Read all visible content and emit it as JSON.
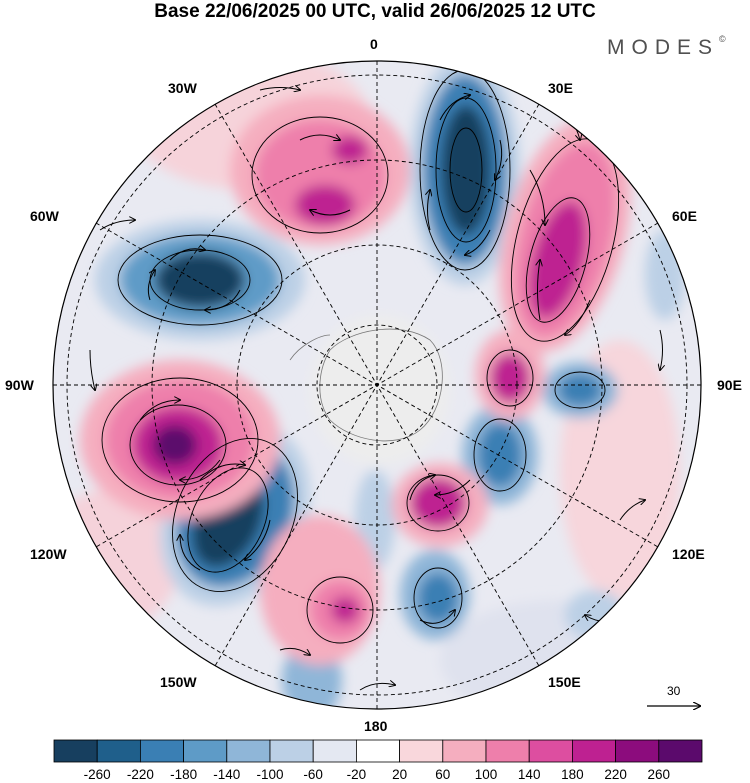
{
  "title": "Base 22/06/2025 00 UTC, valid 26/06/2025 12 UTC",
  "logo": {
    "text": "MODES",
    "mark": "©"
  },
  "map": {
    "projection": "south-polar-stereographic",
    "longitude_labels": [
      "0",
      "30E",
      "60E",
      "90E",
      "120E",
      "150E",
      "180",
      "150W",
      "120W",
      "90W",
      "60W",
      "30W"
    ],
    "graticule": "dashed"
  },
  "vector_scale": {
    "label": "30"
  },
  "colorbar": {
    "tick_labels": [
      "-260",
      "-220",
      "-180",
      "-140",
      "-100",
      "-60",
      "-20",
      "20",
      "60",
      "100",
      "140",
      "180",
      "220",
      "260"
    ],
    "colors": [
      "#173f5f",
      "#1f5f8b",
      "#3a7fb4",
      "#5e9bc7",
      "#8fb6d8",
      "#bcd0e6",
      "#e4e8f2",
      "#ffffff",
      "#f9d7dc",
      "#f5aebf",
      "#ee7fab",
      "#dd4ea0",
      "#be2191",
      "#8c0c7d",
      "#5b0a6c"
    ]
  }
}
